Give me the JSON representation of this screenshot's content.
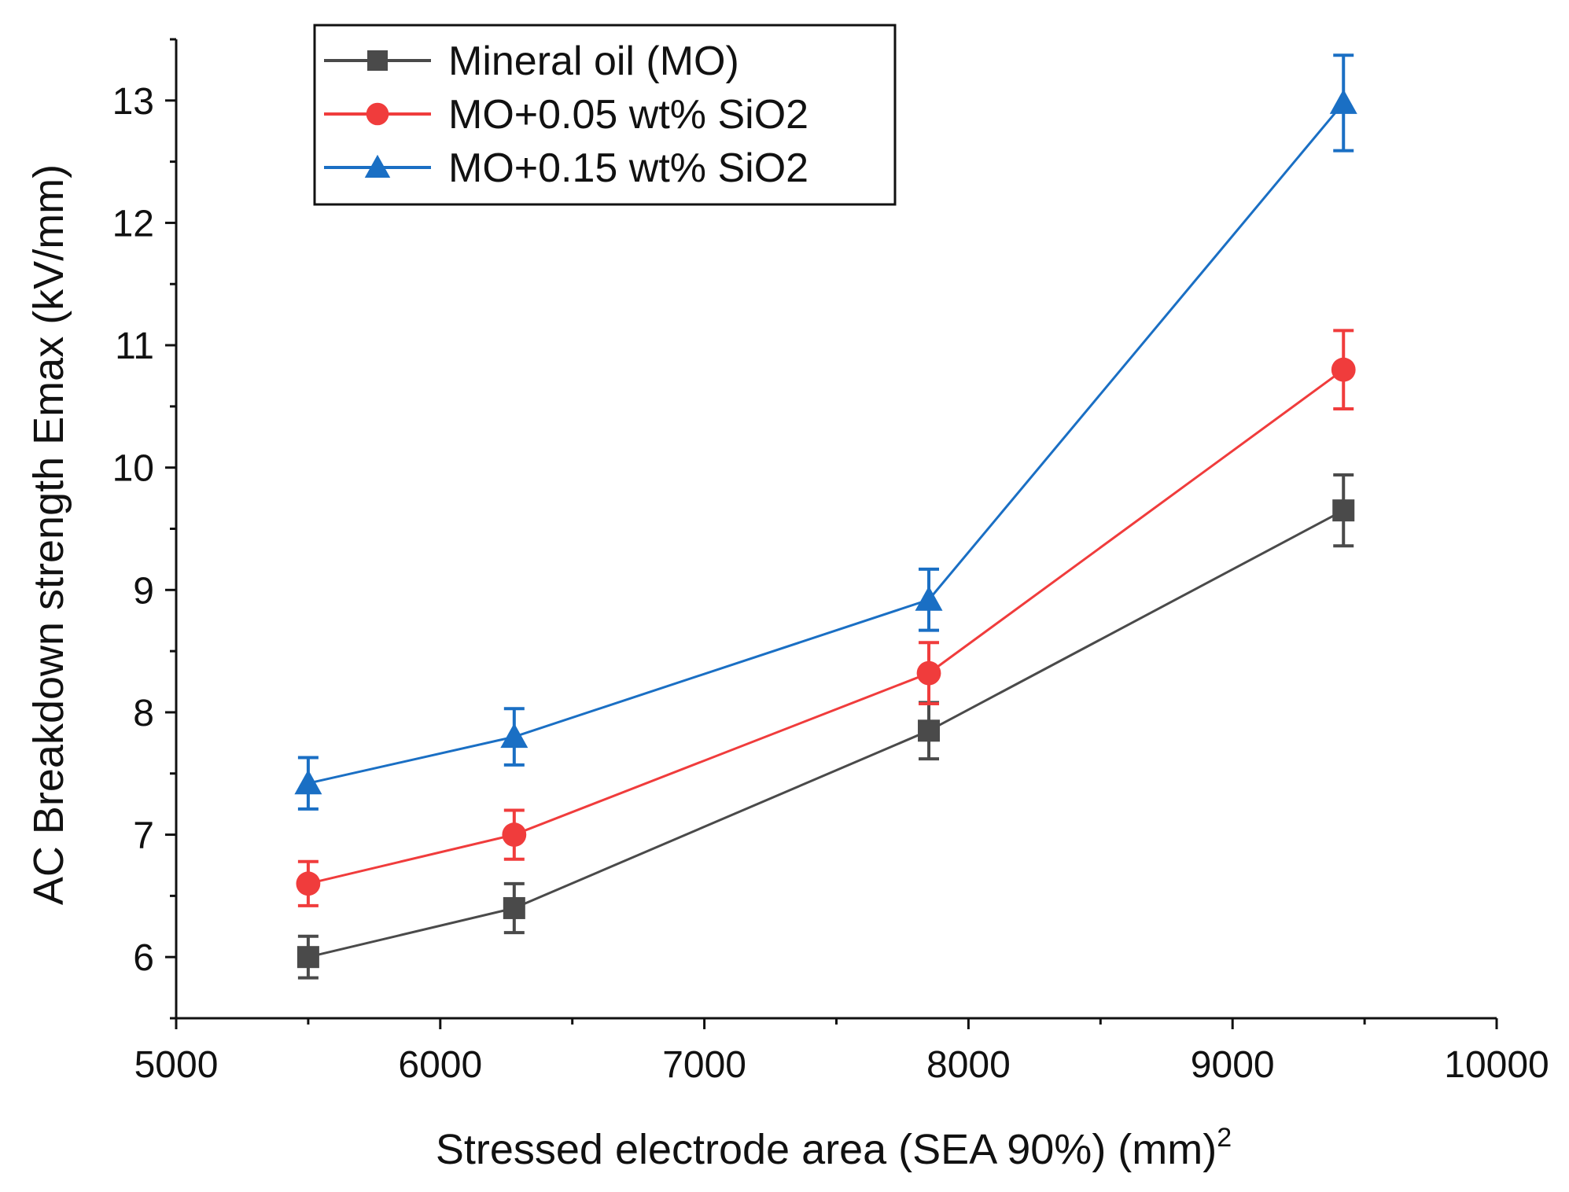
{
  "chart_data": {
    "type": "line",
    "xlabel": "Stressed electrode area (SEA 90%) (mm)",
    "xlabel_superscript": "2",
    "ylabel": "AC Breakdown strength Emax (kV/mm)",
    "xlim": [
      5000,
      10000
    ],
    "ylim": [
      5.5,
      13.5
    ],
    "x_ticks": [
      5000,
      6000,
      7000,
      8000,
      9000,
      10000
    ],
    "x_tick_labels": [
      "5000",
      "6000",
      "7000",
      "8000",
      "9000",
      "10000"
    ],
    "y_ticks": [
      6,
      7,
      8,
      9,
      10,
      11,
      12,
      13
    ],
    "y_tick_labels": [
      "6",
      "7",
      "8",
      "9",
      "10",
      "11",
      "12",
      "13"
    ],
    "grid": false,
    "legend_position": "top-left",
    "x": [
      5500,
      6280,
      7850,
      9420
    ],
    "series": [
      {
        "name": "Mineral oil (MO)",
        "color": "#4a4a4a",
        "marker": "square",
        "values": [
          6.0,
          6.4,
          7.85,
          9.65
        ],
        "errors": [
          0.17,
          0.2,
          0.23,
          0.29
        ]
      },
      {
        "name": "MO+0.05 wt% SiO2",
        "color": "#f03c3c",
        "marker": "circle",
        "values": [
          6.6,
          7.0,
          8.32,
          10.8
        ],
        "errors": [
          0.18,
          0.2,
          0.25,
          0.32
        ]
      },
      {
        "name": "MO+0.15 wt% SiO2",
        "color": "#1a6fc4",
        "marker": "triangle",
        "values": [
          7.42,
          7.8,
          8.92,
          12.98
        ],
        "errors": [
          0.21,
          0.23,
          0.25,
          0.39
        ]
      }
    ]
  }
}
